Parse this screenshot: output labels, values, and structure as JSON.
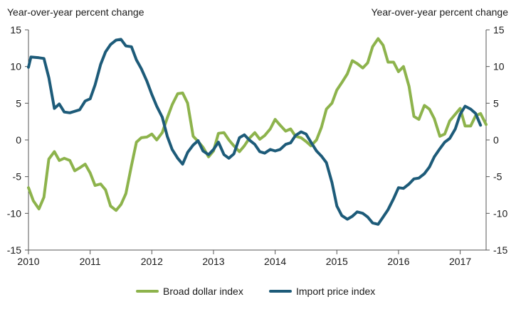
{
  "chart_data": {
    "type": "line",
    "ylabel_left": "Year-over-year percent change",
    "ylabel_right": "Year-over-year percent change",
    "ylim": [
      -15,
      15
    ],
    "yticks": [
      15,
      10,
      5,
      0,
      -5,
      -10,
      -15
    ],
    "xlim": [
      2010,
      2017.42
    ],
    "xticks": [
      "2010",
      "2011",
      "2012",
      "2013",
      "2014",
      "2015",
      "2016",
      "2017"
    ],
    "grid": false,
    "legend_position": "bottom-center",
    "series": [
      {
        "name": "Broad dollar index",
        "color": "#8db34c",
        "points": [
          [
            2010.0,
            -6.5
          ],
          [
            2010.08,
            -8.3
          ],
          [
            2010.17,
            -9.4
          ],
          [
            2010.25,
            -7.8
          ],
          [
            2010.33,
            -2.6
          ],
          [
            2010.42,
            -1.6
          ],
          [
            2010.5,
            -2.8
          ],
          [
            2010.58,
            -2.5
          ],
          [
            2010.67,
            -2.8
          ],
          [
            2010.75,
            -4.2
          ],
          [
            2010.83,
            -3.8
          ],
          [
            2010.92,
            -3.3
          ],
          [
            2011.0,
            -4.5
          ],
          [
            2011.08,
            -6.2
          ],
          [
            2011.17,
            -6.0
          ],
          [
            2011.25,
            -6.8
          ],
          [
            2011.33,
            -9.0
          ],
          [
            2011.42,
            -9.6
          ],
          [
            2011.5,
            -8.8
          ],
          [
            2011.58,
            -7.3
          ],
          [
            2011.67,
            -3.5
          ],
          [
            2011.75,
            -0.3
          ],
          [
            2011.83,
            0.3
          ],
          [
            2011.92,
            0.4
          ],
          [
            2012.0,
            0.8
          ],
          [
            2012.08,
            0.0
          ],
          [
            2012.17,
            1.0
          ],
          [
            2012.25,
            3.0
          ],
          [
            2012.33,
            4.8
          ],
          [
            2012.42,
            6.3
          ],
          [
            2012.5,
            6.4
          ],
          [
            2012.58,
            5.0
          ],
          [
            2012.67,
            0.5
          ],
          [
            2012.75,
            -0.2
          ],
          [
            2012.83,
            -1.0
          ],
          [
            2012.92,
            -2.3
          ],
          [
            2013.0,
            -1.5
          ],
          [
            2013.08,
            0.9
          ],
          [
            2013.17,
            1.0
          ],
          [
            2013.25,
            0.0
          ],
          [
            2013.33,
            -0.8
          ],
          [
            2013.42,
            -1.6
          ],
          [
            2013.5,
            -0.8
          ],
          [
            2013.58,
            0.2
          ],
          [
            2013.67,
            1.0
          ],
          [
            2013.75,
            0.1
          ],
          [
            2013.83,
            0.6
          ],
          [
            2013.92,
            1.5
          ],
          [
            2014.0,
            2.8
          ],
          [
            2014.08,
            2.0
          ],
          [
            2014.17,
            1.2
          ],
          [
            2014.25,
            1.5
          ],
          [
            2014.33,
            0.5
          ],
          [
            2014.42,
            0.3
          ],
          [
            2014.5,
            -0.2
          ],
          [
            2014.58,
            -0.8
          ],
          [
            2014.67,
            0.0
          ],
          [
            2014.75,
            1.7
          ],
          [
            2014.83,
            4.2
          ],
          [
            2014.92,
            5.0
          ],
          [
            2015.0,
            6.8
          ],
          [
            2015.08,
            7.8
          ],
          [
            2015.17,
            9.0
          ],
          [
            2015.25,
            10.8
          ],
          [
            2015.33,
            10.4
          ],
          [
            2015.42,
            9.8
          ],
          [
            2015.5,
            10.5
          ],
          [
            2015.58,
            12.7
          ],
          [
            2015.67,
            13.8
          ],
          [
            2015.75,
            12.9
          ],
          [
            2015.83,
            10.6
          ],
          [
            2015.92,
            10.6
          ],
          [
            2016.0,
            9.3
          ],
          [
            2016.08,
            10.0
          ],
          [
            2016.17,
            7.3
          ],
          [
            2016.25,
            3.2
          ],
          [
            2016.33,
            2.8
          ],
          [
            2016.42,
            4.7
          ],
          [
            2016.5,
            4.2
          ],
          [
            2016.58,
            2.9
          ],
          [
            2016.67,
            0.5
          ],
          [
            2016.75,
            0.8
          ],
          [
            2016.83,
            2.6
          ],
          [
            2016.92,
            3.5
          ],
          [
            2017.0,
            4.3
          ],
          [
            2017.08,
            1.9
          ],
          [
            2017.17,
            1.9
          ],
          [
            2017.25,
            3.3
          ],
          [
            2017.33,
            3.6
          ],
          [
            2017.42,
            2.1
          ]
        ]
      },
      {
        "name": "Import price index",
        "color": "#1d5b79",
        "points": [
          [
            2010.0,
            9.9
          ],
          [
            2010.04,
            11.3
          ],
          [
            2010.17,
            11.2
          ],
          [
            2010.25,
            11.1
          ],
          [
            2010.33,
            8.5
          ],
          [
            2010.42,
            4.3
          ],
          [
            2010.5,
            4.9
          ],
          [
            2010.58,
            3.8
          ],
          [
            2010.67,
            3.7
          ],
          [
            2010.75,
            3.9
          ],
          [
            2010.83,
            4.1
          ],
          [
            2010.92,
            5.3
          ],
          [
            2011.0,
            5.6
          ],
          [
            2011.08,
            7.5
          ],
          [
            2011.17,
            10.3
          ],
          [
            2011.25,
            12.0
          ],
          [
            2011.33,
            13.0
          ],
          [
            2011.42,
            13.6
          ],
          [
            2011.5,
            13.7
          ],
          [
            2011.58,
            12.8
          ],
          [
            2011.67,
            12.7
          ],
          [
            2011.75,
            10.9
          ],
          [
            2011.83,
            9.7
          ],
          [
            2011.92,
            8.0
          ],
          [
            2012.0,
            6.2
          ],
          [
            2012.08,
            4.6
          ],
          [
            2012.17,
            3.1
          ],
          [
            2012.25,
            0.5
          ],
          [
            2012.33,
            -1.3
          ],
          [
            2012.42,
            -2.5
          ],
          [
            2012.5,
            -3.3
          ],
          [
            2012.58,
            -1.7
          ],
          [
            2012.67,
            -0.7
          ],
          [
            2012.75,
            -0.1
          ],
          [
            2012.83,
            -1.5
          ],
          [
            2012.92,
            -2.0
          ],
          [
            2013.0,
            -1.3
          ],
          [
            2013.08,
            -0.3
          ],
          [
            2013.17,
            -2.0
          ],
          [
            2013.25,
            -2.5
          ],
          [
            2013.33,
            -1.9
          ],
          [
            2013.42,
            0.3
          ],
          [
            2013.5,
            0.7
          ],
          [
            2013.58,
            0.0
          ],
          [
            2013.67,
            -0.6
          ],
          [
            2013.75,
            -1.6
          ],
          [
            2013.83,
            -1.8
          ],
          [
            2013.92,
            -1.3
          ],
          [
            2014.0,
            -1.5
          ],
          [
            2014.08,
            -1.3
          ],
          [
            2014.17,
            -0.6
          ],
          [
            2014.25,
            -0.4
          ],
          [
            2014.33,
            0.6
          ],
          [
            2014.42,
            1.1
          ],
          [
            2014.5,
            0.8
          ],
          [
            2014.58,
            -0.3
          ],
          [
            2014.67,
            -1.5
          ],
          [
            2014.75,
            -2.2
          ],
          [
            2014.83,
            -3.1
          ],
          [
            2014.92,
            -5.8
          ],
          [
            2015.0,
            -9.0
          ],
          [
            2015.08,
            -10.3
          ],
          [
            2015.17,
            -10.8
          ],
          [
            2015.25,
            -10.4
          ],
          [
            2015.33,
            -9.8
          ],
          [
            2015.42,
            -10.0
          ],
          [
            2015.5,
            -10.5
          ],
          [
            2015.58,
            -11.3
          ],
          [
            2015.67,
            -11.5
          ],
          [
            2015.75,
            -10.5
          ],
          [
            2015.83,
            -9.5
          ],
          [
            2015.92,
            -8.0
          ],
          [
            2016.0,
            -6.5
          ],
          [
            2016.08,
            -6.6
          ],
          [
            2016.17,
            -6.0
          ],
          [
            2016.25,
            -5.3
          ],
          [
            2016.33,
            -5.2
          ],
          [
            2016.42,
            -4.6
          ],
          [
            2016.5,
            -3.7
          ],
          [
            2016.58,
            -2.3
          ],
          [
            2016.67,
            -1.2
          ],
          [
            2016.75,
            -0.3
          ],
          [
            2016.83,
            0.2
          ],
          [
            2016.92,
            1.5
          ],
          [
            2017.0,
            3.5
          ],
          [
            2017.08,
            4.6
          ],
          [
            2017.17,
            4.2
          ],
          [
            2017.25,
            3.6
          ],
          [
            2017.33,
            2.0
          ]
        ]
      }
    ]
  }
}
